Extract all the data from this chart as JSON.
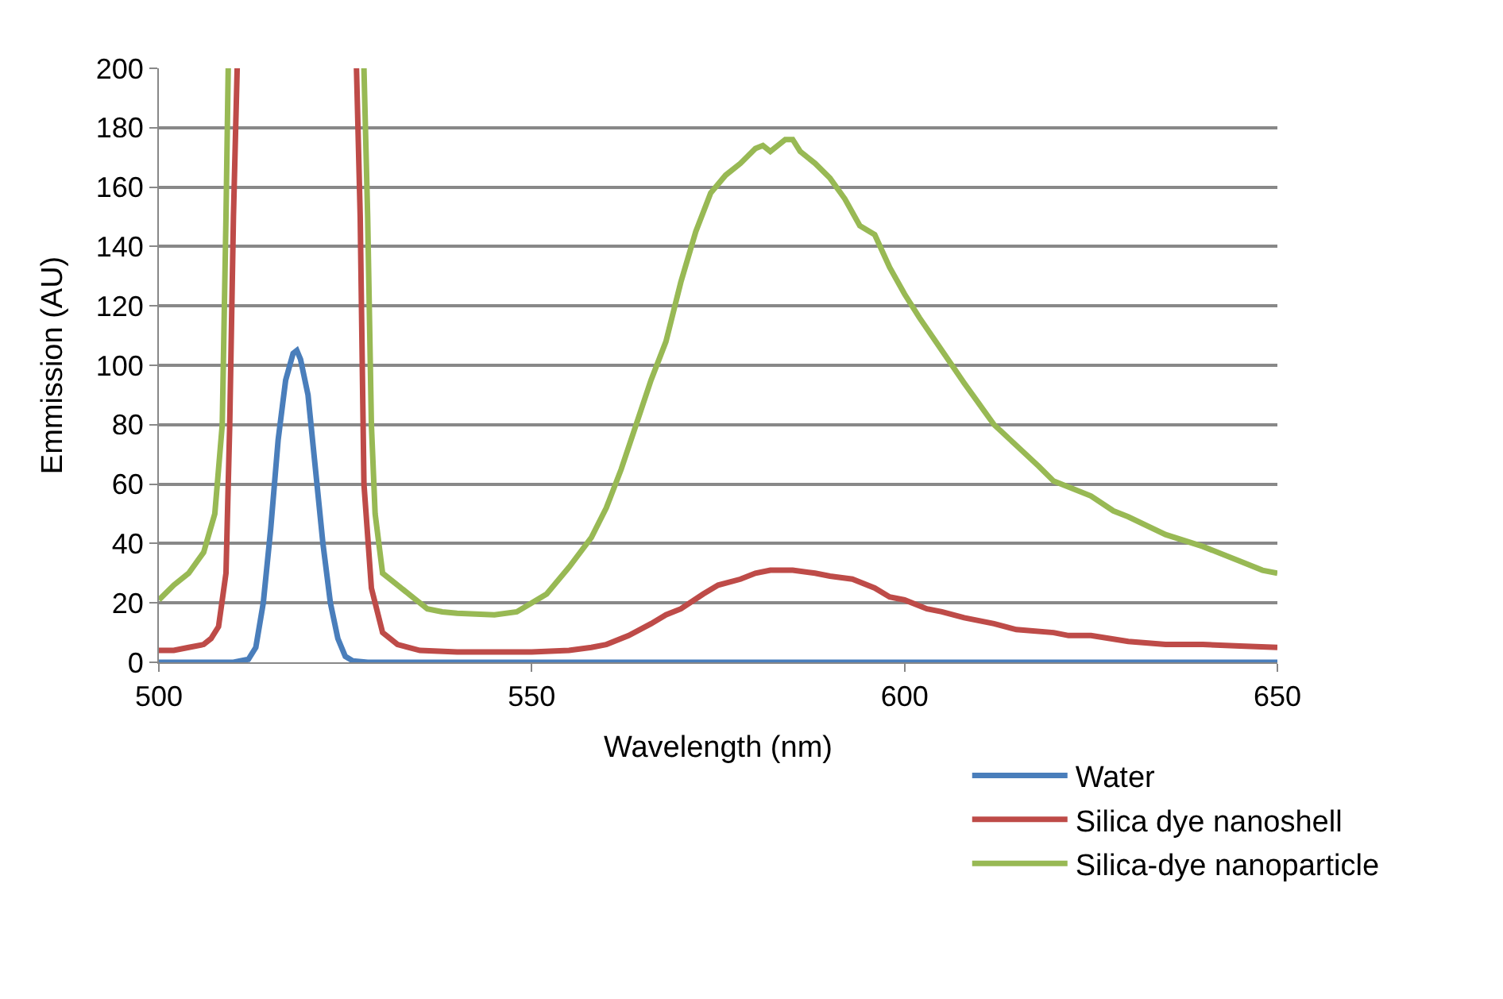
{
  "chart_data": {
    "type": "line",
    "xlabel": "Wavelength (nm)",
    "ylabel": "Emmission (AU)",
    "xlim": [
      500,
      650
    ],
    "xticks": [
      500,
      550,
      600,
      650
    ],
    "ylim": [
      0,
      200
    ],
    "yticks": [
      0,
      20,
      40,
      60,
      80,
      100,
      120,
      140,
      160,
      180,
      200
    ],
    "grid": "y",
    "legend": "bottom right",
    "marker": "none",
    "line_style": "solid",
    "series": [
      {
        "name": "Water",
        "color": "#4a7ebb",
        "x": [
          500,
          510,
          512,
          513,
          514,
          515,
          516,
          517,
          518,
          518.5,
          519,
          520,
          521,
          522,
          523,
          524,
          525,
          526,
          528,
          650
        ],
        "values": [
          0,
          0,
          1,
          5,
          20,
          45,
          75,
          95,
          104,
          105,
          102,
          90,
          65,
          40,
          20,
          8,
          2,
          0.5,
          0,
          0
        ]
      },
      {
        "name": "Silica dye nanoshell",
        "color": "#be4b48",
        "x": [
          500,
          502,
          504,
          506,
          507,
          508,
          509,
          509.5,
          510,
          510.5,
          518,
          526.5,
          527,
          527.5,
          528.5,
          530,
          532,
          535,
          540,
          545,
          550,
          555,
          558,
          560,
          563,
          566,
          568,
          570,
          573,
          575,
          578,
          580,
          582,
          585,
          588,
          590,
          593,
          596,
          598,
          600,
          603,
          605,
          608,
          612,
          615,
          620,
          622,
          625,
          630,
          635,
          640,
          645,
          650
        ],
        "values": [
          4,
          4,
          5,
          6,
          8,
          12,
          30,
          80,
          150,
          200,
          null,
          200,
          150,
          60,
          25,
          10,
          6,
          4,
          3.5,
          3.5,
          3.5,
          4,
          5,
          6,
          9,
          13,
          16,
          18,
          23,
          26,
          28,
          30,
          31,
          31,
          30,
          29,
          28,
          25,
          22,
          21,
          18,
          17,
          15,
          13,
          11,
          10,
          9,
          9,
          7,
          6,
          6,
          5.5,
          5
        ]
      },
      {
        "name": "Silica-dye nanoparticle",
        "color": "#98b954",
        "x": [
          500,
          502,
          504,
          506,
          507.5,
          508.5,
          509,
          509.3,
          518,
          527.5,
          528,
          528.5,
          529,
          530,
          532,
          534,
          536,
          538,
          540,
          545,
          548,
          550,
          552,
          555,
          558,
          560,
          562,
          564,
          566,
          568,
          570,
          572,
          574,
          576,
          578,
          580,
          581,
          582,
          584,
          585,
          586,
          588,
          590,
          592,
          594,
          596,
          598,
          600,
          602,
          605,
          608,
          610,
          612,
          615,
          618,
          620,
          625,
          628,
          630,
          635,
          640,
          645,
          648,
          650
        ],
        "values": [
          21,
          26,
          30,
          37,
          50,
          80,
          150,
          200,
          null,
          200,
          150,
          80,
          50,
          30,
          26,
          22,
          18,
          17,
          16.5,
          16,
          17,
          20,
          23,
          32,
          42,
          52,
          65,
          80,
          95,
          108,
          128,
          145,
          158,
          164,
          168,
          173,
          174,
          172,
          176,
          176,
          172,
          168,
          163,
          156,
          147,
          144,
          133,
          124,
          116,
          105,
          94,
          87,
          80,
          73,
          66,
          61,
          56,
          51,
          49,
          43,
          39,
          34,
          31,
          30
        ]
      }
    ]
  }
}
